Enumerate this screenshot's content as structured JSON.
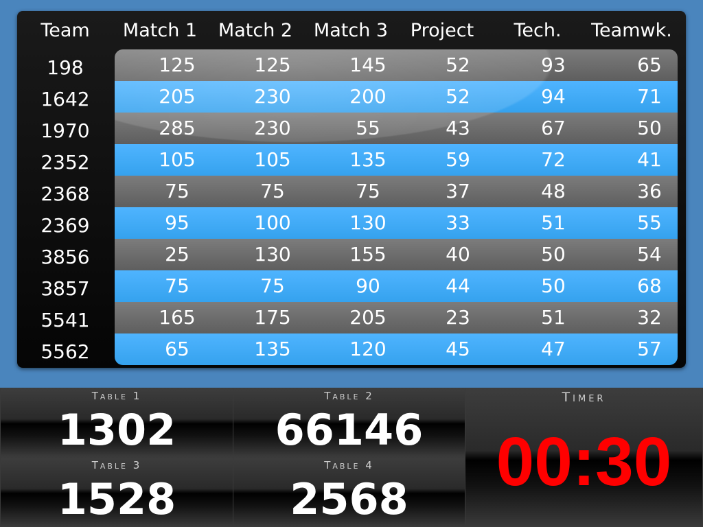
{
  "scoreboard": {
    "columns": [
      "Team",
      "Match 1",
      "Match 2",
      "Match 3",
      "Project",
      "Tech.",
      "Teamwk."
    ],
    "rows": [
      {
        "team": "198",
        "values": [
          "125",
          "125",
          "145",
          "52",
          "93",
          "65"
        ]
      },
      {
        "team": "1642",
        "values": [
          "205",
          "230",
          "200",
          "52",
          "94",
          "71"
        ]
      },
      {
        "team": "1970",
        "values": [
          "285",
          "230",
          "55",
          "43",
          "67",
          "50"
        ]
      },
      {
        "team": "2352",
        "values": [
          "105",
          "105",
          "135",
          "59",
          "72",
          "41"
        ]
      },
      {
        "team": "2368",
        "values": [
          "75",
          "75",
          "75",
          "37",
          "48",
          "36"
        ]
      },
      {
        "team": "2369",
        "values": [
          "95",
          "100",
          "130",
          "33",
          "51",
          "55"
        ]
      },
      {
        "team": "3856",
        "values": [
          "25",
          "130",
          "155",
          "40",
          "50",
          "54"
        ]
      },
      {
        "team": "3857",
        "values": [
          "75",
          "75",
          "90",
          "44",
          "50",
          "68"
        ]
      },
      {
        "team": "5541",
        "values": [
          "165",
          "175",
          "205",
          "23",
          "51",
          "32"
        ]
      },
      {
        "team": "5562",
        "values": [
          "65",
          "135",
          "120",
          "45",
          "47",
          "57"
        ]
      }
    ]
  },
  "tables": [
    {
      "label": "Table 1",
      "value": "1302"
    },
    {
      "label": "Table 2",
      "value": "66146"
    },
    {
      "label": "Table 3",
      "value": "1528"
    },
    {
      "label": "Table 4",
      "value": "2568"
    }
  ],
  "timer": {
    "label": "Timer",
    "value": "00:30"
  },
  "colors": {
    "background": "#4a85bd",
    "row_gray": "#6e6e6e",
    "row_blue": "#41abf6",
    "timer_value": "#ff0000"
  }
}
